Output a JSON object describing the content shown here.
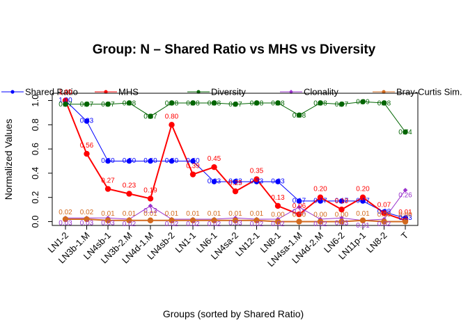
{
  "chart_data": {
    "type": "line",
    "title": "Group: N – Shared Ratio vs MHS vs Diversity",
    "xlabel": "Groups (sorted by Shared Ratio)",
    "ylabel": "Normalized Values",
    "ylim": [
      0,
      1
    ],
    "yticks": [
      "0.0",
      "0.2",
      "0.4",
      "0.6",
      "0.8",
      "1.0"
    ],
    "grid": false,
    "legend_position": "top",
    "categories": [
      "LN1-2",
      "LN3b-1.M",
      "LN4sb-1",
      "LN3b-2.M",
      "LN4d-1.M",
      "LN4sb-2",
      "LN1-1",
      "LN6-1",
      "LN4sa-2",
      "LN12-1",
      "LN8-1",
      "LN4sa-1.M",
      "LN4d-2.M",
      "LN6-2",
      "LN11p-1",
      "LN8-2",
      "T"
    ],
    "series": [
      {
        "name": "Shared Ratio",
        "color": "#0000ff",
        "values": [
          1.0,
          0.83,
          0.5,
          0.5,
          0.5,
          0.5,
          0.5,
          0.33,
          0.33,
          0.33,
          0.33,
          0.17,
          0.17,
          0.17,
          0.17,
          0.08,
          0.03
        ],
        "labels": [
          "1.00",
          "0.83",
          "0.50",
          "0.50",
          "0.50",
          "0.50",
          "0.50",
          "0.33",
          "0.33",
          "0.33",
          "0.33",
          "0.17",
          "0.17",
          "0.17",
          "0.17",
          "0.08",
          "0.03"
        ]
      },
      {
        "name": "MHS",
        "color": "#ff0000",
        "values": [
          1.0,
          0.56,
          0.27,
          0.23,
          0.19,
          0.8,
          0.39,
          0.45,
          0.25,
          0.35,
          0.13,
          0.06,
          0.2,
          0.1,
          0.2,
          0.07,
          0.01
        ],
        "labels": [
          "1.00",
          "0.56",
          "0.27",
          "0.23",
          "0.19",
          "0.80",
          "0.39",
          "0.45",
          "0.25",
          "0.35",
          "0.13",
          "0.06",
          "0.20",
          "0.10",
          "0.20",
          "0.07",
          "0.01"
        ]
      },
      {
        "name": "Diversity",
        "color": "#006400",
        "values": [
          0.97,
          0.97,
          0.97,
          0.98,
          0.87,
          0.98,
          0.98,
          0.98,
          0.97,
          0.98,
          0.98,
          0.88,
          0.98,
          0.97,
          0.99,
          0.98,
          0.74
        ],
        "labels": [
          "0.97",
          "0.97",
          "0.97",
          "0.98",
          "0.87",
          "0.98",
          "0.98",
          "0.98",
          "0.97",
          "0.98",
          "0.98",
          "0.88",
          "0.98",
          "0.97",
          "0.99",
          "0.98",
          "0.74"
        ]
      },
      {
        "name": "Clonality",
        "color": "#9932cc",
        "values": [
          0.03,
          0.03,
          0.03,
          0.02,
          0.13,
          0.02,
          0.02,
          0.02,
          0.03,
          0.02,
          0.02,
          0.12,
          0.02,
          0.03,
          0.01,
          0.02,
          0.26
        ],
        "labels": [
          "0.03",
          "0.03",
          "0.03",
          "0.02",
          "0.13",
          "0.02",
          "0.02",
          "0.02",
          "0.03",
          "0.02",
          "0.02",
          "0.12",
          "0.02",
          "0.03",
          "0.01",
          "0.02",
          "0.26"
        ]
      },
      {
        "name": "Bray-Curtis Sim.",
        "color": "#d2691e",
        "values": [
          0.02,
          0.02,
          0.01,
          0.01,
          0.01,
          0.01,
          0.01,
          0.01,
          0.01,
          0.01,
          0.0,
          0.0,
          0.0,
          0.0,
          0.01,
          0.0,
          0.0
        ],
        "labels": [
          "0.02",
          "0.02",
          "0.01",
          "0.01",
          "0.01",
          "0.01",
          "0.01",
          "0.01",
          "0.01",
          "0.01",
          "0.00",
          "0.00",
          "0.00",
          "0.00",
          "0.01",
          "0.00",
          "0.00"
        ]
      }
    ]
  }
}
